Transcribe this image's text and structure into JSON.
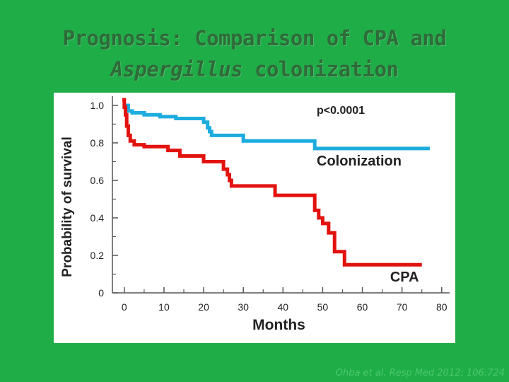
{
  "slide": {
    "title_line1": "Prognosis: Comparison of CPA and",
    "title_line2_italic": "Aspergillus",
    "title_line2_rest": " colonization",
    "citation": "Ohba et al, Resp Med 2012; 106:724",
    "background_color": "#1fad48"
  },
  "chart_data": {
    "type": "line",
    "xlabel": "Months",
    "ylabel": "Probability of survival",
    "xlim": [
      -3,
      82
    ],
    "ylim": [
      0,
      1.03
    ],
    "x_ticks": [
      0,
      10,
      20,
      30,
      40,
      50,
      60,
      70,
      80
    ],
    "y_ticks": [
      0,
      0.2,
      0.4,
      0.6,
      0.8,
      1.0
    ],
    "y_tick_labels": [
      "0",
      "0.2",
      "0.4",
      "0.6",
      "0.8",
      "1.0"
    ],
    "grid": false,
    "annotations": [
      {
        "text": "p<0.0001",
        "x": 48.5,
        "y": 0.955
      }
    ],
    "series": [
      {
        "name": "Colonization",
        "color": "#1cacde",
        "label_pos": {
          "x": 48.5,
          "y": 0.68
        },
        "x": [
          0,
          1,
          2,
          5,
          9,
          13,
          20,
          21,
          21.5,
          22,
          23,
          26,
          30,
          38,
          48,
          77
        ],
        "y": [
          1.0,
          0.97,
          0.96,
          0.95,
          0.94,
          0.93,
          0.91,
          0.88,
          0.86,
          0.84,
          0.84,
          0.84,
          0.81,
          0.81,
          0.77,
          0.77
        ]
      },
      {
        "name": "CPA",
        "color": "#e2130f",
        "label_pos": {
          "x": 67,
          "y": 0.06
        },
        "x": [
          -0.5,
          0,
          0.3,
          0.6,
          1,
          1.5,
          2.5,
          5,
          11,
          14,
          20,
          25,
          26,
          26.5,
          27,
          38,
          48,
          49,
          50,
          51.5,
          53,
          55.5,
          75
        ],
        "y": [
          1.03,
          0.99,
          0.95,
          0.89,
          0.84,
          0.81,
          0.79,
          0.78,
          0.76,
          0.73,
          0.7,
          0.66,
          0.63,
          0.6,
          0.57,
          0.52,
          0.44,
          0.4,
          0.37,
          0.32,
          0.22,
          0.15,
          0.15
        ]
      }
    ]
  }
}
